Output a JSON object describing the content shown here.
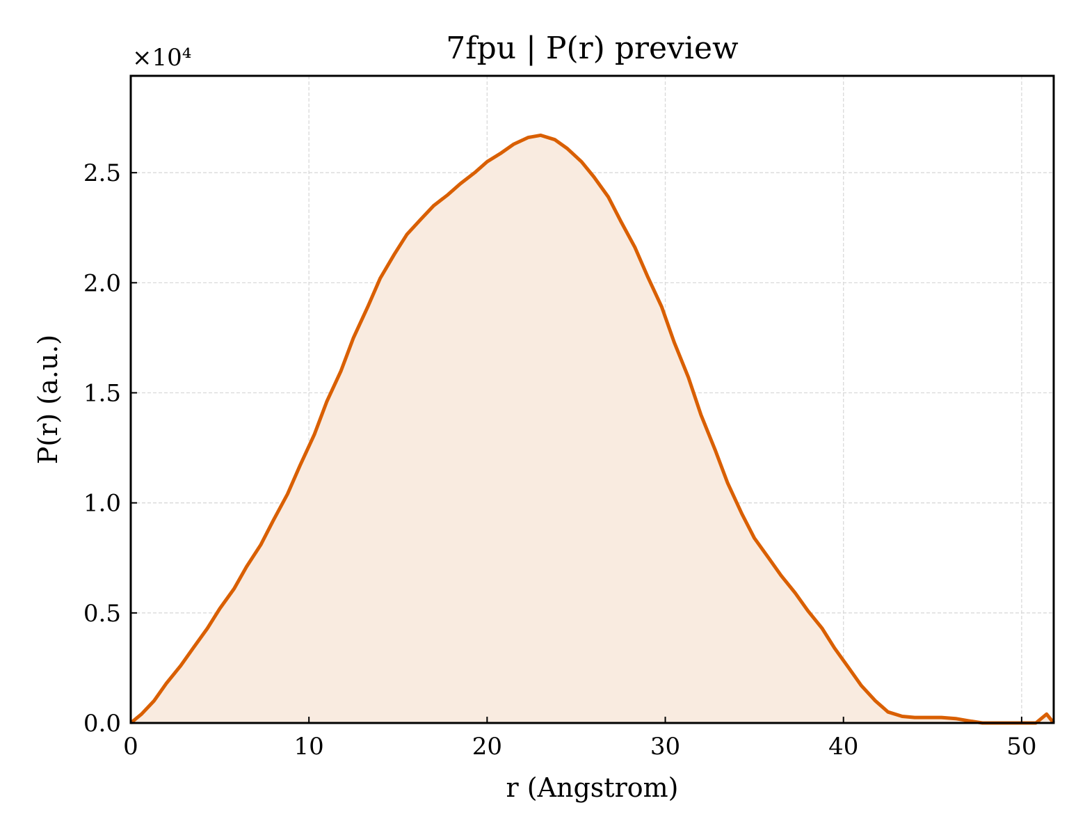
{
  "chart_data": {
    "type": "area",
    "title": "7fpu | P(r) preview",
    "xlabel": "r (Angstrom)",
    "ylabel": "P(r) (a.u.)",
    "y_offset_label": "×10⁴",
    "xlim": [
      0,
      51.8
    ],
    "ylim": [
      0,
      29400
    ],
    "x_ticks": [
      0,
      10,
      20,
      30,
      40,
      50
    ],
    "y_ticks": [
      0,
      5000,
      10000,
      15000,
      20000,
      25000
    ],
    "x_tick_labels": [
      "0",
      "10",
      "20",
      "30",
      "40",
      "50"
    ],
    "y_tick_labels": [
      "0.0",
      "0.5",
      "1.0",
      "1.5",
      "2.0",
      "2.5"
    ],
    "grid": true,
    "line_color": "#d95f02",
    "fill_color": "#f9ebe0",
    "series": [
      {
        "x": [
          0,
          0.6,
          1.3,
          2.0,
          2.8,
          3.5,
          4.3,
          5.0,
          5.8,
          6.5,
          7.3,
          8.0,
          8.8,
          9.5,
          10.3,
          11.0,
          11.8,
          12.5,
          13.3,
          14.0,
          14.8,
          15.5,
          16.3,
          17.0,
          17.8,
          18.5,
          19.3,
          20.0,
          20.8,
          21.5,
          22.3,
          23.0,
          23.8,
          24.5,
          25.3,
          26.0,
          26.8,
          27.5,
          28.3,
          29.0,
          29.8,
          30.5,
          31.3,
          32.0,
          32.8,
          33.5,
          34.3,
          35.0,
          35.8,
          36.5,
          37.3,
          38.0,
          38.8,
          39.5,
          40.3,
          41.0,
          41.8,
          42.5,
          43.3,
          44.0,
          44.8,
          45.5,
          46.3,
          47.0,
          47.8,
          48.5,
          49.3,
          50.0,
          50.8,
          51.4,
          51.8
        ],
        "y": [
          0,
          400,
          1000,
          1800,
          2600,
          3400,
          4300,
          5200,
          6100,
          7100,
          8100,
          9200,
          10400,
          11700,
          13100,
          14600,
          16000,
          17500,
          18900,
          20200,
          21300,
          22200,
          22900,
          23500,
          24000,
          24500,
          25000,
          25500,
          25900,
          26300,
          26600,
          26700,
          26500,
          26100,
          25500,
          24800,
          23900,
          22800,
          21600,
          20300,
          18900,
          17300,
          15700,
          14000,
          12400,
          10900,
          9500,
          8400,
          7500,
          6700,
          5900,
          5100,
          4300,
          3400,
          2500,
          1700,
          1000,
          500,
          300,
          250,
          250,
          250,
          200,
          100,
          0,
          0,
          0,
          0,
          0,
          400,
          0
        ]
      }
    ]
  }
}
